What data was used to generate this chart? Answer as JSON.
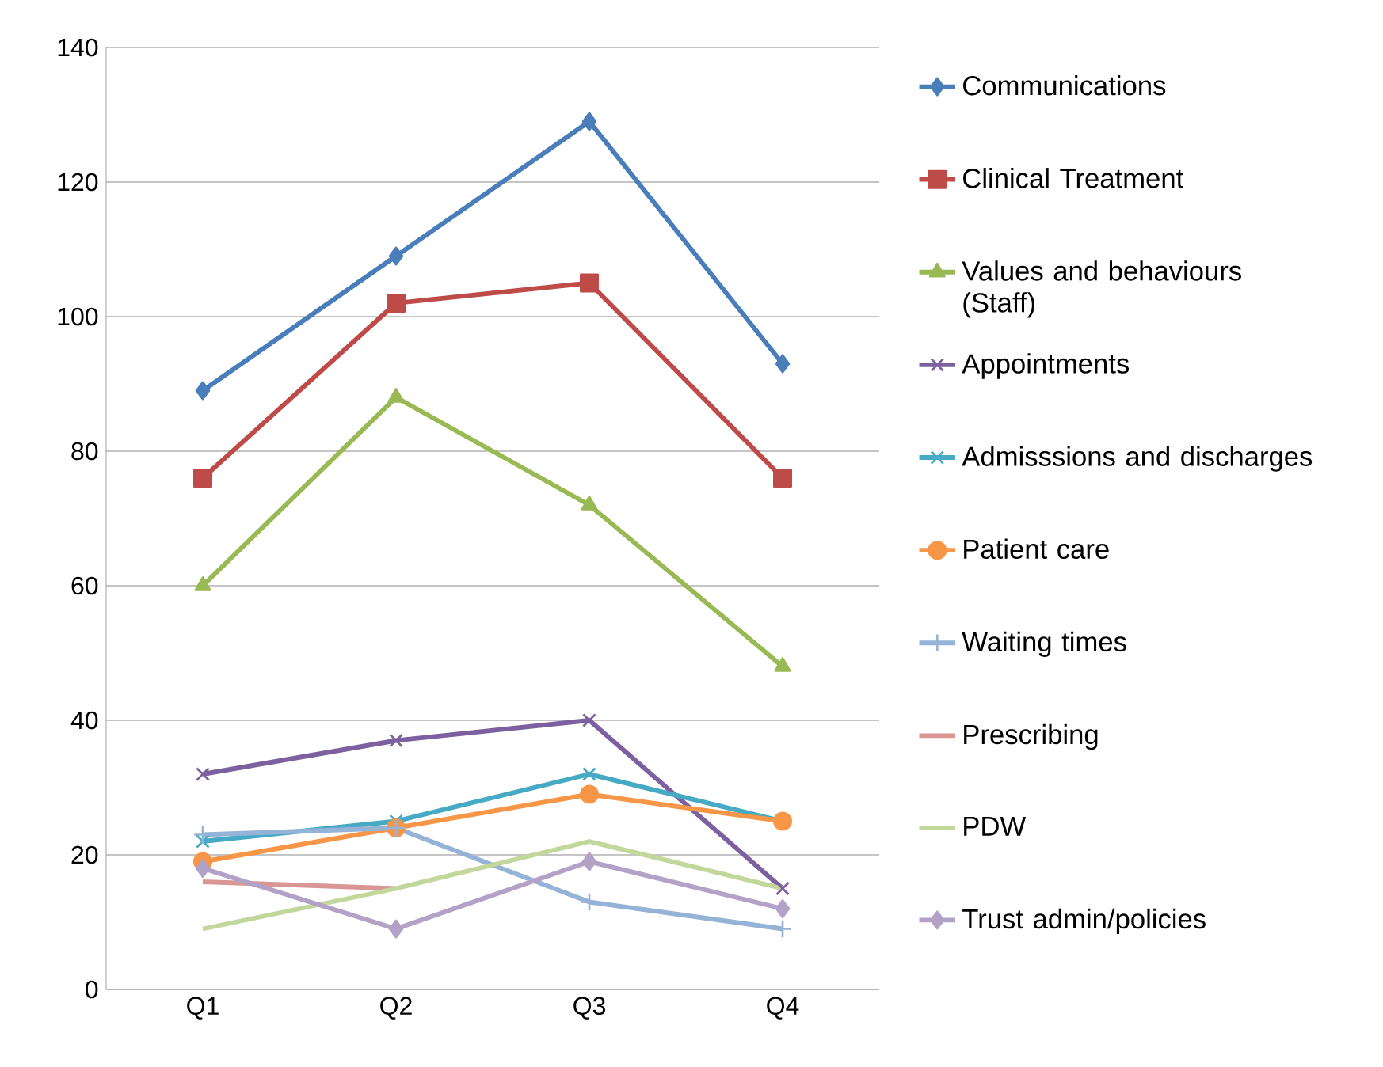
{
  "chart_data": {
    "type": "line",
    "categories": [
      "Q1",
      "Q2",
      "Q3",
      "Q4"
    ],
    "ylim": [
      0,
      140
    ],
    "yticks": [
      0,
      20,
      40,
      60,
      80,
      100,
      120,
      140
    ],
    "grid": "y",
    "legend": "right",
    "series": [
      {
        "name": "Communications",
        "color": "#4a7ebb",
        "marker": "diamond",
        "values": [
          89,
          109,
          129,
          93
        ]
      },
      {
        "name": "Clinical Treatment",
        "color": "#be4b48",
        "marker": "square",
        "values": [
          76,
          102,
          105,
          76
        ]
      },
      {
        "name": "Values and behaviours (Staff)",
        "color": "#98b954",
        "marker": "triangle",
        "values": [
          60,
          88,
          72,
          48
        ]
      },
      {
        "name": "Appointments",
        "color": "#7d60a0",
        "marker": "cross",
        "values": [
          32,
          37,
          40,
          15
        ]
      },
      {
        "name": "Admisssions and discharges",
        "color": "#46aac5",
        "marker": "cross",
        "values": [
          22,
          25,
          32,
          25
        ]
      },
      {
        "name": "Patient care",
        "color": "#f79646",
        "marker": "circle",
        "values": [
          19,
          24,
          29,
          25
        ]
      },
      {
        "name": "Waiting times",
        "color": "#95b3d7",
        "marker": "plus",
        "values": [
          23,
          24,
          13,
          9
        ]
      },
      {
        "name": "Prescribing",
        "color": "#d99694",
        "marker": "none",
        "values": [
          16,
          15,
          null,
          null
        ]
      },
      {
        "name": "PDW",
        "color": "#c3d69b",
        "marker": "none",
        "values": [
          9,
          15,
          22,
          15
        ]
      },
      {
        "name": "Trust admin/policies",
        "color": "#b3a2c7",
        "marker": "diamond",
        "values": [
          18,
          9,
          19,
          12
        ]
      }
    ]
  }
}
